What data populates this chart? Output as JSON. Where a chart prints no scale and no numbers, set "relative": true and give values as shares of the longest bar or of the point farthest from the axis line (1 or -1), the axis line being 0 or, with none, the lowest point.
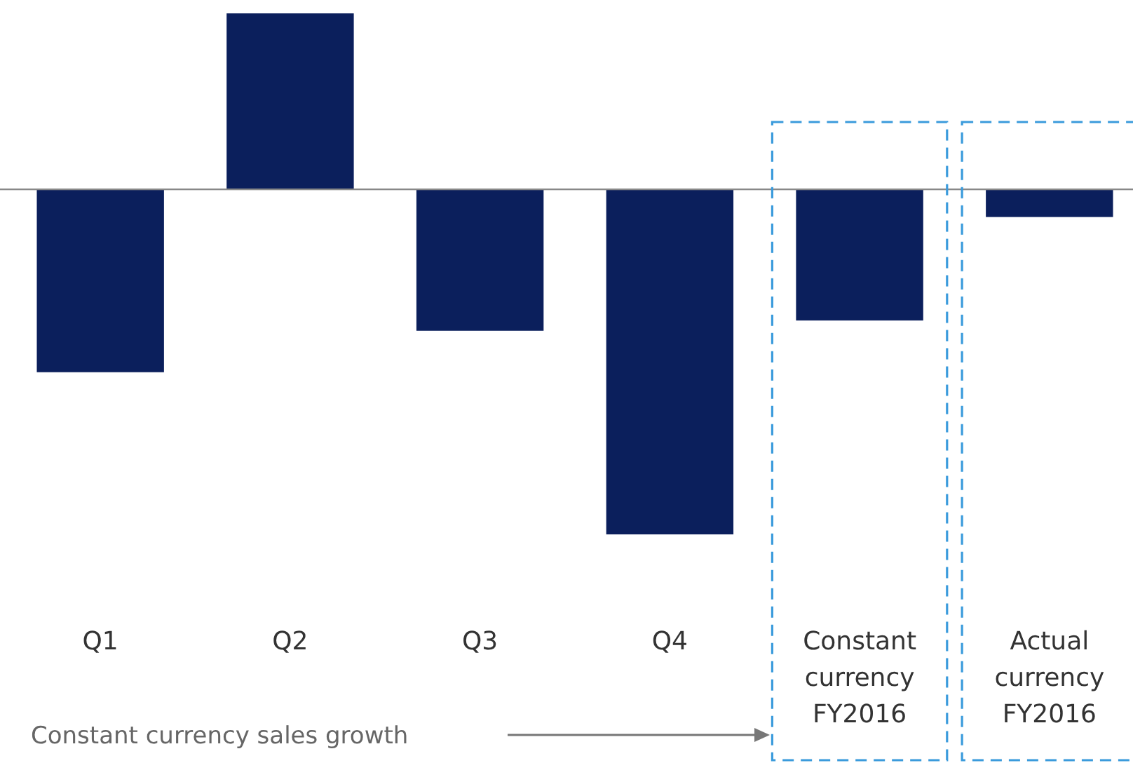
{
  "chart_data": {
    "type": "bar",
    "relative": true,
    "categories": [
      "Q1",
      "Q2",
      "Q3",
      "Q4",
      "Constant currency FY2016",
      "Actual currency FY2016"
    ],
    "values": [
      -0.53,
      0.51,
      -0.41,
      -1,
      -0.38,
      -0.08
    ],
    "color": "#0b1f5c",
    "annotations": [
      "Constant currency sales growth"
    ]
  }
}
